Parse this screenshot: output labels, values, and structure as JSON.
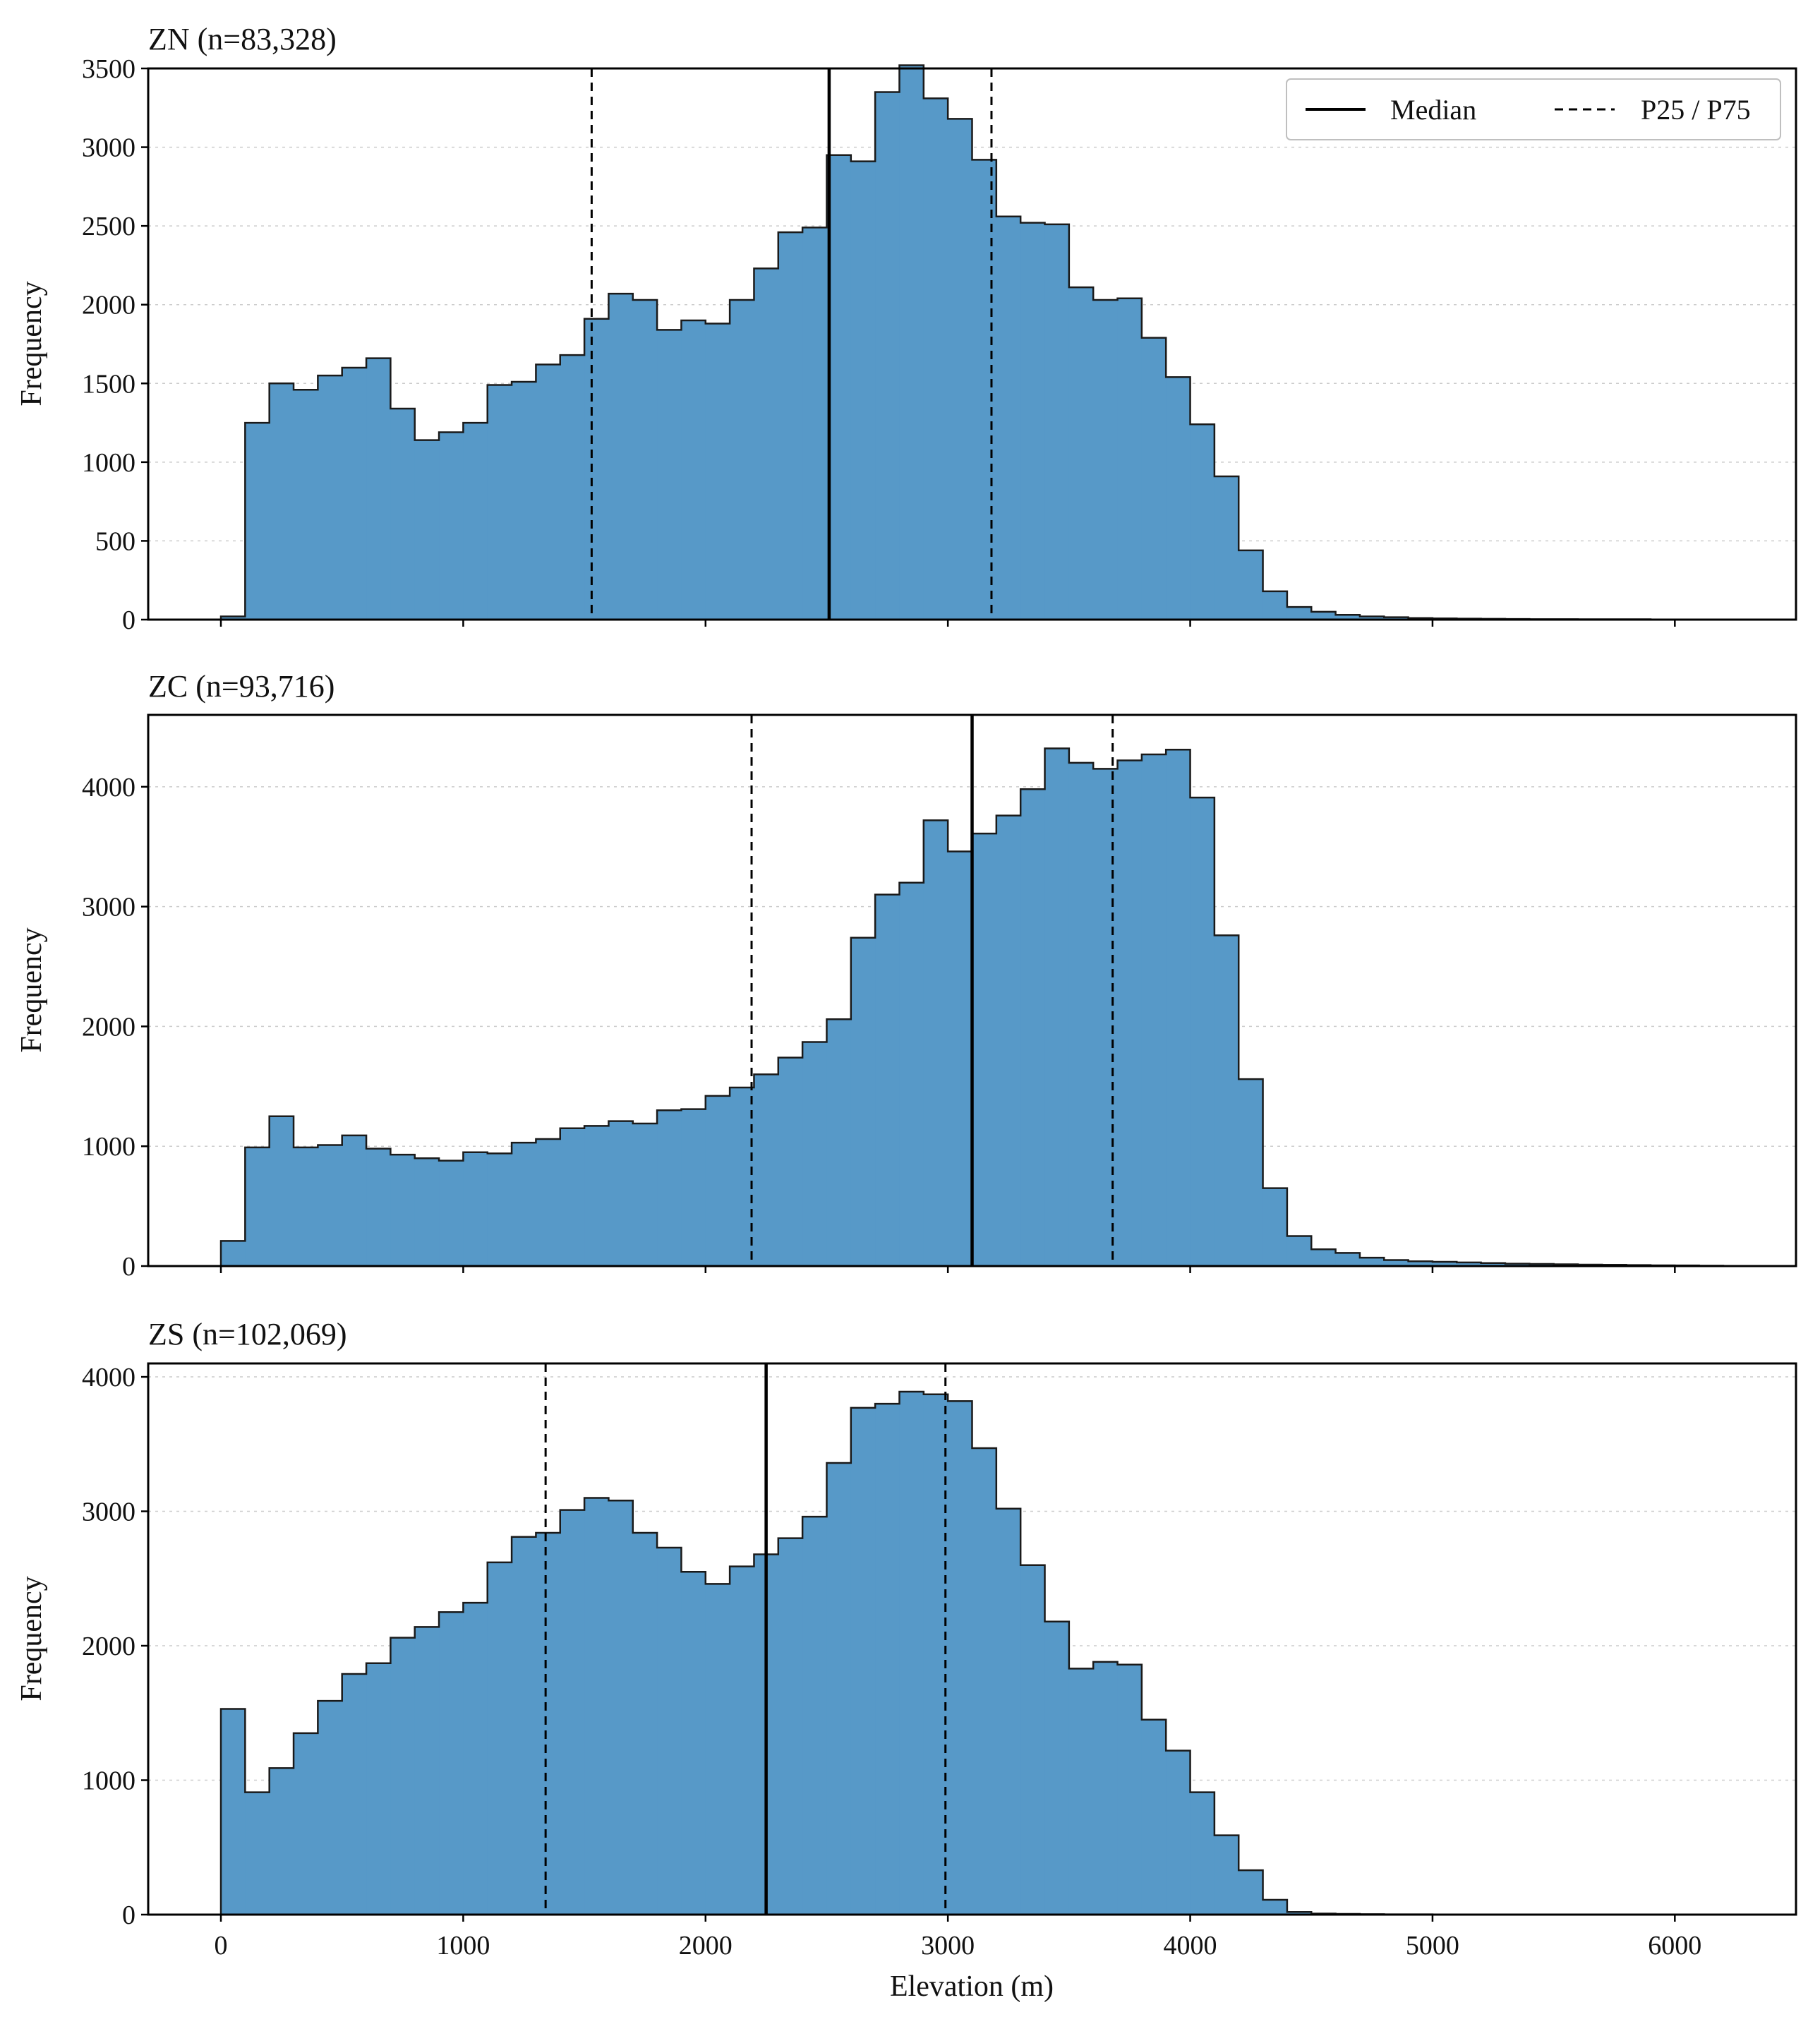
{
  "figure": {
    "x_label": "Elevation (m)"
  },
  "legend": {
    "median_label": "Median",
    "pct_label": "P25 / P75",
    "placement": "upper right (top panel)"
  },
  "colors": {
    "bar_fill": "#5799C8",
    "bar_edge": "#1a1a1a",
    "grid": "#cccccc",
    "line": "#000000"
  },
  "chart_data": [
    {
      "type": "bar",
      "title": "ZN  (n=83,328)",
      "xlabel": "",
      "ylabel": "Frequency",
      "bin_width": 100,
      "bin_start": 0,
      "xlim": [
        -300,
        6500
      ],
      "ylim": [
        0,
        3500
      ],
      "xticks": [
        0,
        1000,
        2000,
        3000,
        4000,
        5000,
        6000
      ],
      "yticks": [
        0,
        500,
        1000,
        1500,
        2000,
        2500,
        3000,
        3500
      ],
      "grid": true,
      "values": [
        20,
        1250,
        1500,
        1460,
        1550,
        1600,
        1660,
        1340,
        1140,
        1190,
        1250,
        1490,
        1510,
        1620,
        1680,
        1910,
        2070,
        2030,
        1840,
        1900,
        1880,
        2030,
        2230,
        2460,
        2490,
        2950,
        2910,
        3350,
        3520,
        3310,
        3180,
        2920,
        2560,
        2520,
        2510,
        2110,
        2030,
        2040,
        1790,
        1540,
        1240,
        910,
        440,
        180,
        80,
        50,
        30,
        20,
        15,
        10,
        8,
        6,
        5,
        4,
        3,
        3,
        2,
        2,
        2,
        1,
        1,
        1
      ],
      "median": 2510,
      "p25": 1530,
      "p75": 3180
    },
    {
      "type": "bar",
      "title": "ZC  (n=93,716)",
      "xlabel": "",
      "ylabel": "Frequency",
      "bin_width": 100,
      "bin_start": 0,
      "xlim": [
        -300,
        6500
      ],
      "ylim": [
        0,
        4600
      ],
      "xticks": [
        0,
        1000,
        2000,
        3000,
        4000,
        5000,
        6000
      ],
      "yticks": [
        0,
        1000,
        2000,
        3000,
        4000
      ],
      "grid": true,
      "values": [
        210,
        990,
        1250,
        990,
        1010,
        1090,
        980,
        930,
        900,
        880,
        950,
        940,
        1030,
        1060,
        1150,
        1170,
        1210,
        1190,
        1300,
        1310,
        1420,
        1490,
        1600,
        1740,
        1870,
        2060,
        2740,
        3100,
        3200,
        3720,
        3460,
        3610,
        3760,
        3980,
        4320,
        4200,
        4150,
        4220,
        4270,
        4310,
        3910,
        2760,
        1560,
        650,
        250,
        140,
        110,
        70,
        50,
        40,
        35,
        30,
        25,
        20,
        18,
        15,
        12,
        10,
        8,
        6,
        5,
        3
      ],
      "median": 3100,
      "p25": 2190,
      "p75": 3680
    },
    {
      "type": "bar",
      "title": "ZS  (n=102,069)",
      "xlabel": "Elevation (m)",
      "ylabel": "Frequency",
      "bin_width": 100,
      "bin_start": 0,
      "xlim": [
        -300,
        6500
      ],
      "ylim": [
        0,
        4100
      ],
      "xticks": [
        0,
        1000,
        2000,
        3000,
        4000,
        5000,
        6000
      ],
      "yticks": [
        0,
        1000,
        2000,
        3000,
        4000
      ],
      "grid": true,
      "values": [
        1530,
        910,
        1090,
        1350,
        1590,
        1790,
        1870,
        2060,
        2140,
        2250,
        2320,
        2620,
        2810,
        2840,
        3010,
        3100,
        3080,
        2840,
        2730,
        2550,
        2460,
        2590,
        2680,
        2800,
        2960,
        3360,
        3770,
        3800,
        3890,
        3870,
        3820,
        3470,
        3020,
        2600,
        2180,
        1830,
        1880,
        1860,
        1450,
        1220,
        910,
        590,
        330,
        110,
        20,
        8,
        5,
        3,
        2,
        2,
        1,
        1,
        1,
        1,
        1,
        1,
        1,
        1,
        1,
        1,
        1,
        1
      ],
      "median": 2250,
      "p25": 1340,
      "p75": 2990
    }
  ]
}
